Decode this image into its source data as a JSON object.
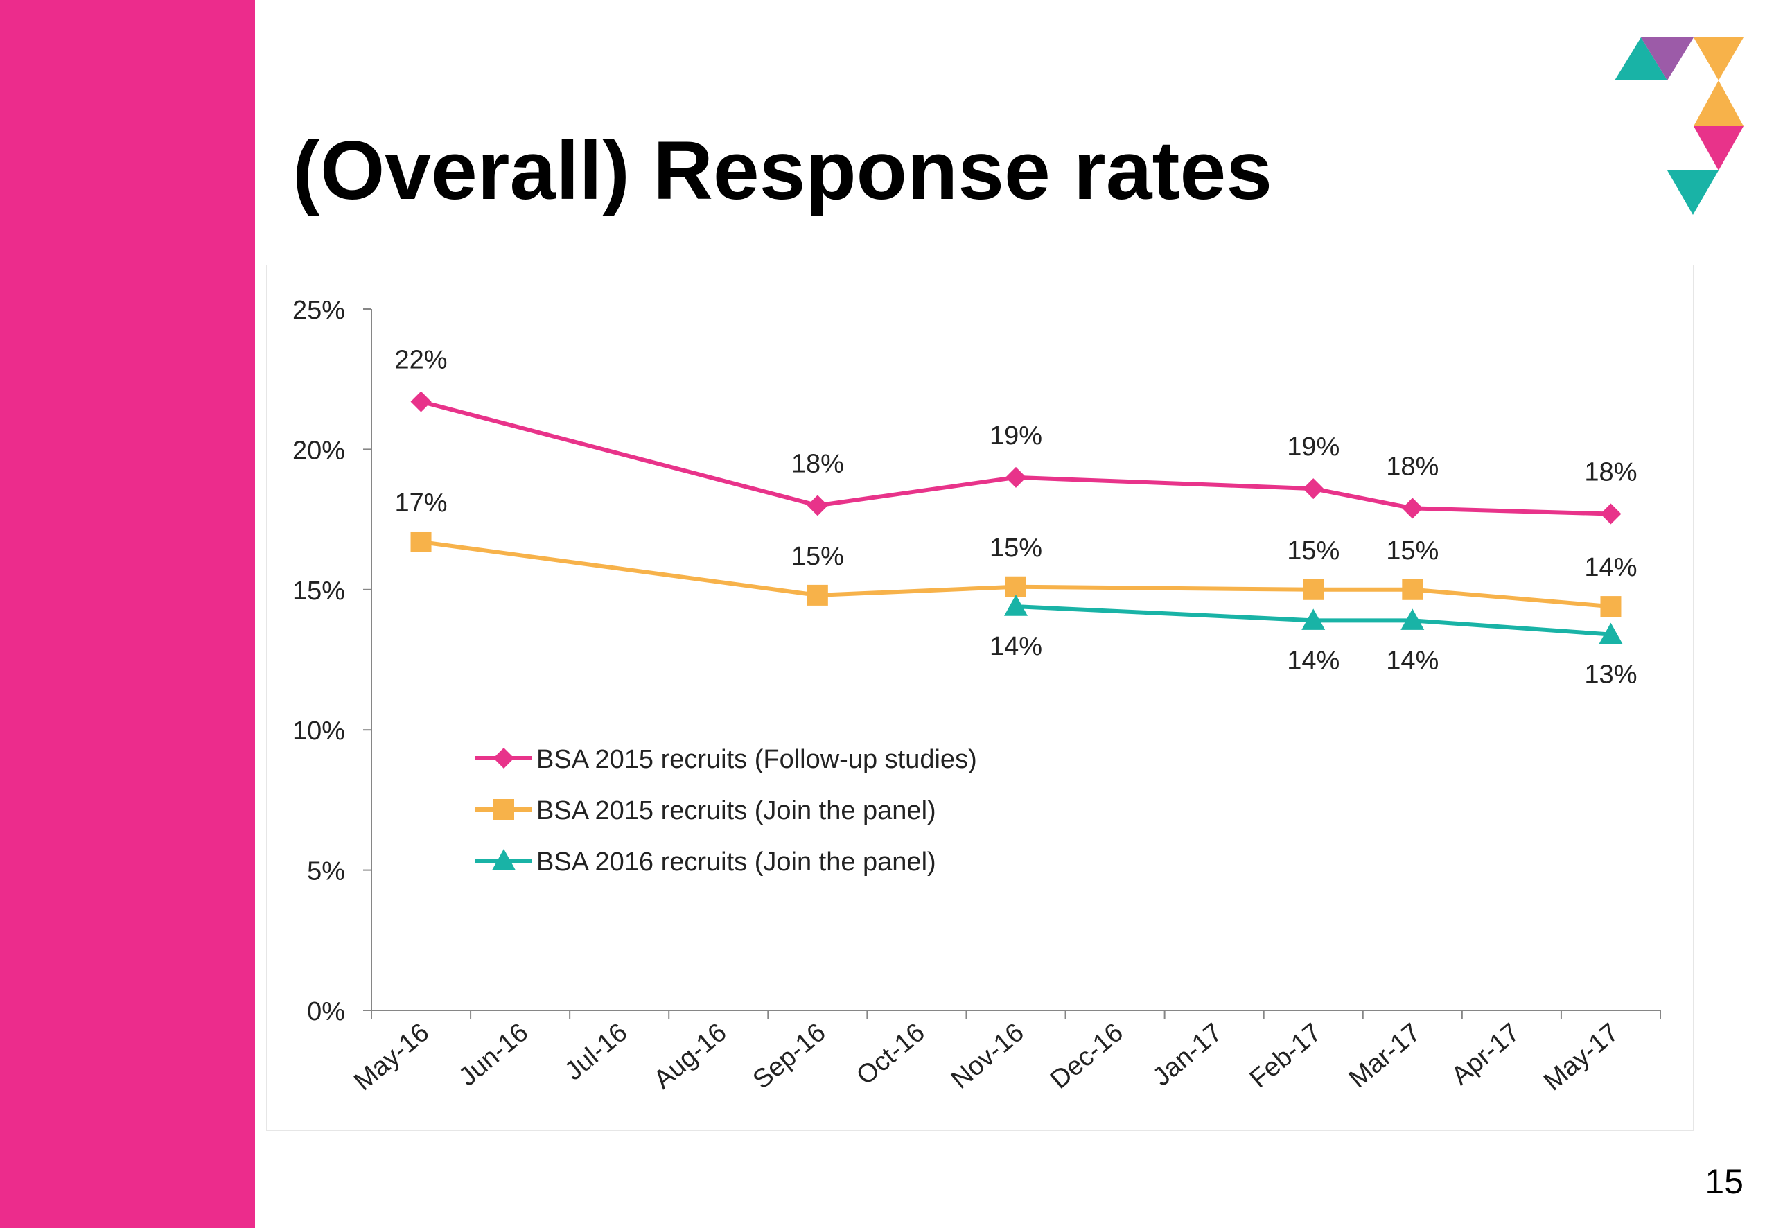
{
  "slide": {
    "title": "(Overall) Response rates",
    "page_number": "15"
  },
  "colors": {
    "sidebar": "#ec2c8c",
    "series_pink": "#e8338a",
    "series_orange": "#f7b24a",
    "series_teal": "#19b3a6",
    "logo_purple": "#9c5ba8"
  },
  "chart_data": {
    "type": "line",
    "categories": [
      "May-16",
      "Jun-16",
      "Jul-16",
      "Aug-16",
      "Sep-16",
      "Oct-16",
      "Nov-16",
      "Dec-16",
      "Jan-17",
      "Feb-17",
      "Mar-17",
      "Apr-17",
      "May-17"
    ],
    "yticks": [
      "0%",
      "5%",
      "10%",
      "15%",
      "20%",
      "25%"
    ],
    "ylim": [
      0,
      25
    ],
    "grid": false,
    "legend_position": "left-middle",
    "series": [
      {
        "name": "BSA 2015 recruits (Follow-up studies)",
        "marker": "diamond",
        "color": "#e8338a",
        "values": [
          21.7,
          null,
          null,
          null,
          18.0,
          null,
          19.0,
          null,
          null,
          18.6,
          17.9,
          null,
          17.7
        ],
        "labels": [
          "22%",
          null,
          null,
          null,
          "18%",
          null,
          "19%",
          null,
          null,
          "19%",
          "18%",
          null,
          "18%"
        ]
      },
      {
        "name": "BSA 2015 recruits (Join the panel)",
        "marker": "square",
        "color": "#f7b24a",
        "values": [
          16.7,
          null,
          null,
          null,
          14.8,
          null,
          15.1,
          null,
          null,
          15.0,
          15.0,
          null,
          14.4
        ],
        "labels": [
          "17%",
          null,
          null,
          null,
          "15%",
          null,
          "15%",
          null,
          null,
          "15%",
          "15%",
          null,
          "14%"
        ]
      },
      {
        "name": "BSA 2016 recruits (Join the panel)",
        "marker": "triangle",
        "color": "#19b3a6",
        "values": [
          null,
          null,
          null,
          null,
          null,
          null,
          14.4,
          null,
          null,
          13.9,
          13.9,
          null,
          13.4
        ],
        "labels": [
          null,
          null,
          null,
          null,
          null,
          null,
          "14%",
          null,
          null,
          "14%",
          "14%",
          null,
          "13%"
        ]
      }
    ]
  }
}
